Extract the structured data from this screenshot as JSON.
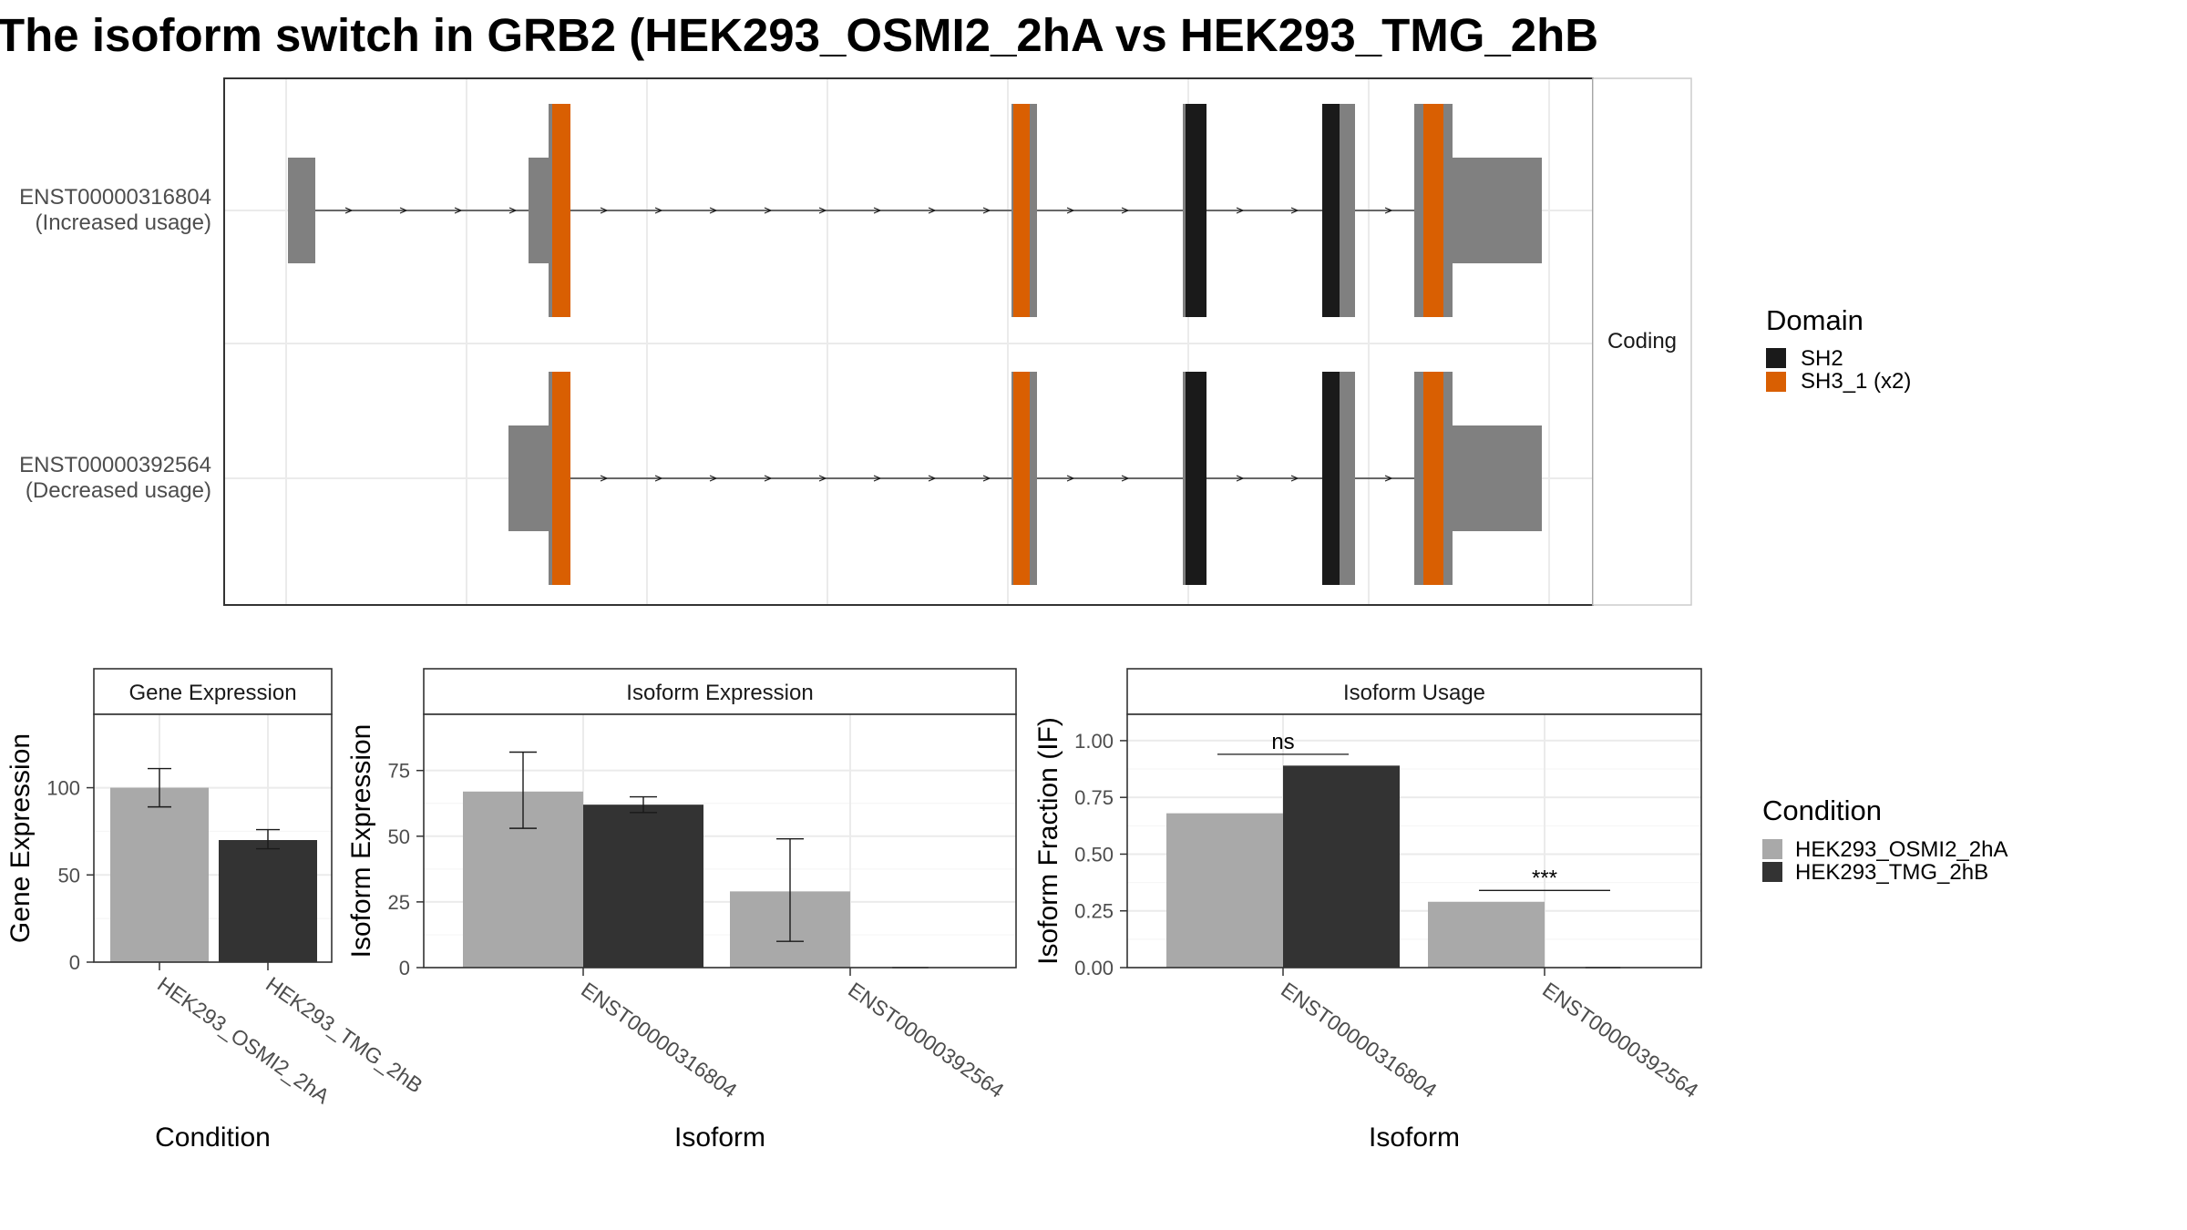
{
  "title": "The isoform switch in GRB2 (HEK293_OSMI2_2hA vs HEK293_TMG_2hB",
  "colors": {
    "exon_gray": "#808080",
    "sh2": "#1a1a1a",
    "sh3": "#d95f02",
    "cond_a": "#a9a9a9",
    "cond_b": "#333333",
    "grid": "#ebebeb",
    "panel_border": "#333333"
  },
  "structure": {
    "facet_label": "Coding",
    "isoforms": [
      {
        "id": "ENST00000316804",
        "label_line1": "ENST00000316804",
        "label_line2": "(Increased usage)"
      },
      {
        "id": "ENST00000392564",
        "label_line1": "ENST00000392564",
        "label_line2": "(Decreased usage)"
      }
    ]
  },
  "legend_domain": {
    "title": "Domain",
    "items": [
      {
        "label": "SH2",
        "color": "#1a1a1a"
      },
      {
        "label": "SH3_1 (x2)",
        "color": "#d95f02"
      }
    ]
  },
  "legend_condition": {
    "title": "Condition",
    "items": [
      {
        "label": "HEK293_OSMI2_2hA",
        "color": "#a9a9a9"
      },
      {
        "label": "HEK293_TMG_2hB",
        "color": "#333333"
      }
    ]
  },
  "chart_data": [
    {
      "type": "bar",
      "title": "Gene Expression",
      "xlabel": "Condition",
      "ylabel": "Gene Expression",
      "ylim": [
        0,
        140
      ],
      "yticks": [
        0,
        50,
        100
      ],
      "categories": [
        "HEK293_OSMI2_2hA",
        "HEK293_TMG_2hB"
      ],
      "values": [
        100,
        70
      ],
      "errors": [
        [
          89,
          111
        ],
        [
          65,
          76
        ]
      ],
      "colors": [
        "#a9a9a9",
        "#333333"
      ]
    },
    {
      "type": "bar",
      "title": "Isoform Expression",
      "xlabel": "Isoform",
      "ylabel": "Isoform Expression",
      "ylim": [
        0,
        95
      ],
      "yticks": [
        0,
        25,
        50,
        75
      ],
      "categories": [
        "ENST00000316804",
        "ENST00000392564"
      ],
      "series": [
        {
          "name": "HEK293_OSMI2_2hA",
          "values": [
            67,
            29
          ],
          "errors": [
            [
              53,
              82
            ],
            [
              10,
              49
            ]
          ]
        },
        {
          "name": "HEK293_TMG_2hB",
          "values": [
            62,
            0
          ],
          "errors": [
            [
              59,
              65
            ],
            [
              0,
              0
            ]
          ]
        }
      ]
    },
    {
      "type": "bar",
      "title": "Isoform Usage",
      "xlabel": "Isoform",
      "ylabel": "Isoform Fraction (IF)",
      "ylim": [
        0,
        1.1
      ],
      "yticks": [
        "0.00",
        "0.25",
        "0.50",
        "0.75",
        "1.00"
      ],
      "categories": [
        "ENST00000316804",
        "ENST00000392564"
      ],
      "series": [
        {
          "name": "HEK293_OSMI2_2hA",
          "values": [
            0.68,
            0.29
          ]
        },
        {
          "name": "HEK293_TMG_2hB",
          "values": [
            0.89,
            0.0
          ]
        }
      ],
      "annotations": [
        {
          "category": "ENST00000316804",
          "label": "ns",
          "y": 0.94
        },
        {
          "category": "ENST00000392564",
          "label": "***",
          "y": 0.34
        }
      ]
    }
  ]
}
